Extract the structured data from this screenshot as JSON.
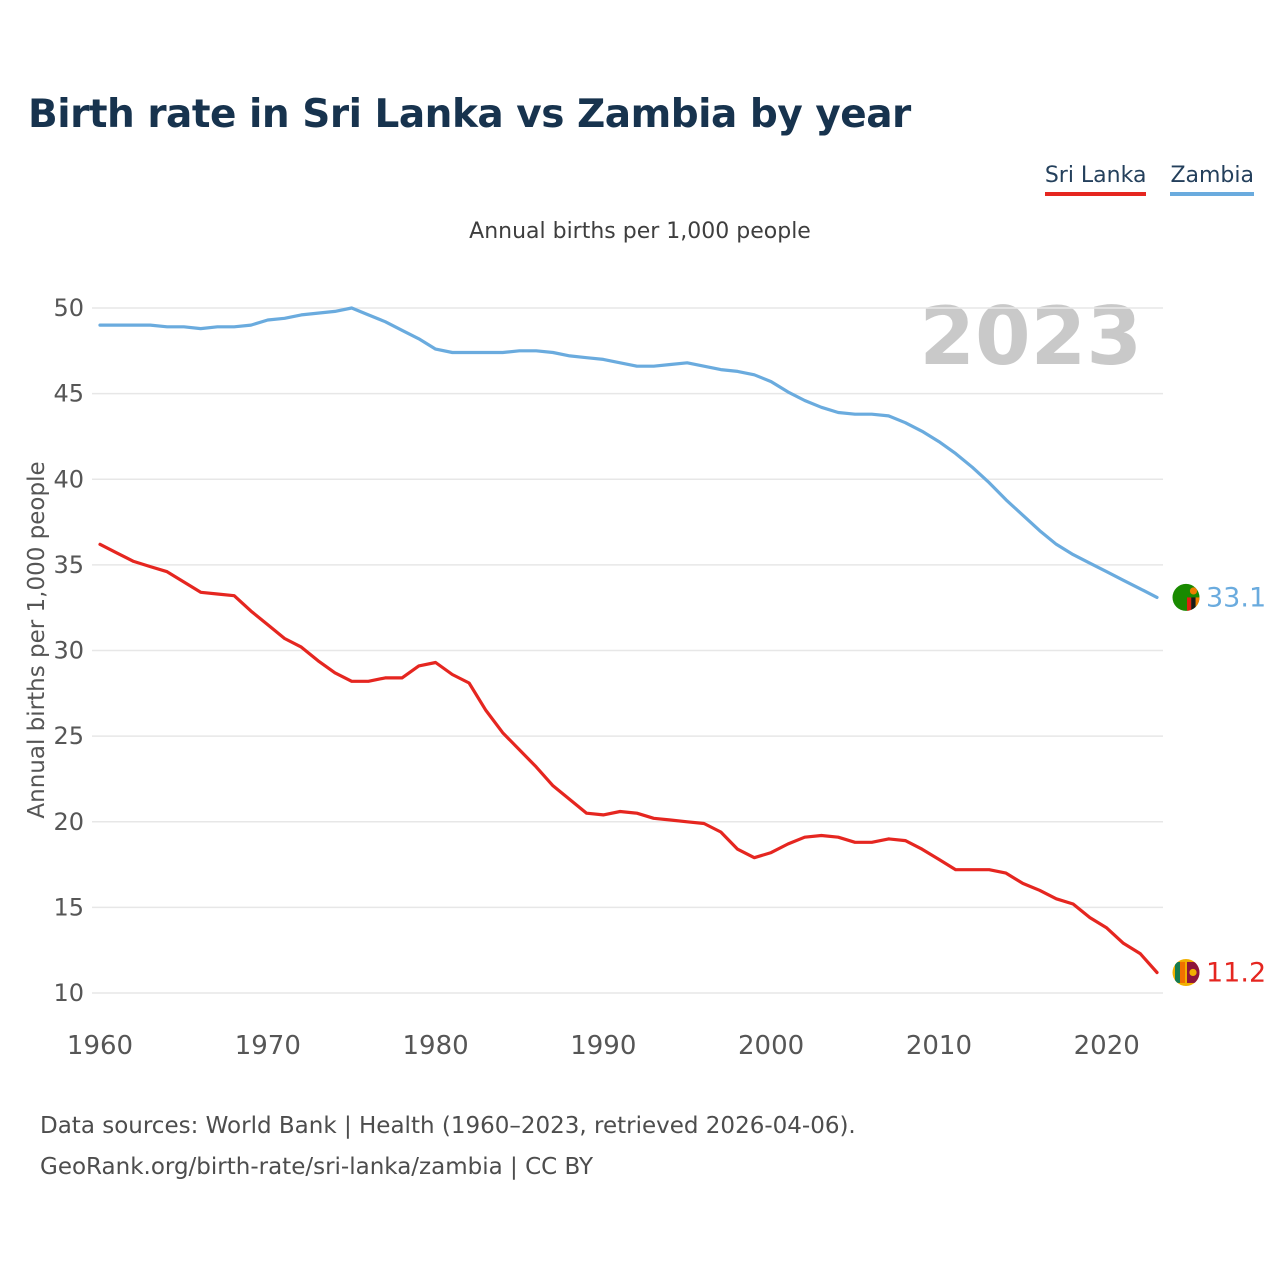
{
  "header": {
    "title": "Birth rate in Sri Lanka vs Zambia by year"
  },
  "legend": [
    {
      "label": "Sri Lanka",
      "color": "#e52620"
    },
    {
      "label": "Zambia",
      "color": "#6aabde"
    }
  ],
  "footer": {
    "line1": "Data sources: World Bank | Health (1960–2023, retrieved 2026-04-06).",
    "line2": "GeoRank.org/birth-rate/sri-lanka/zambia | CC BY"
  },
  "chart_data": {
    "type": "line",
    "title": "Birth rate in Sri Lanka vs Zambia by year",
    "subtitle": "Annual births per 1,000 people",
    "ylabel": "Annual births per 1,000 people",
    "watermark": "2023",
    "grid": "horizontal",
    "legend_position": "top-right",
    "ylim": [
      10,
      50
    ],
    "yticks": [
      10,
      15,
      20,
      25,
      30,
      35,
      40,
      45,
      50
    ],
    "xticks": [
      1960,
      1970,
      1980,
      1990,
      2000,
      2010,
      2020
    ],
    "x": [
      1960,
      1961,
      1962,
      1963,
      1964,
      1965,
      1966,
      1967,
      1968,
      1969,
      1970,
      1971,
      1972,
      1973,
      1974,
      1975,
      1976,
      1977,
      1978,
      1979,
      1980,
      1981,
      1982,
      1983,
      1984,
      1985,
      1986,
      1987,
      1988,
      1989,
      1990,
      1991,
      1992,
      1993,
      1994,
      1995,
      1996,
      1997,
      1998,
      1999,
      2000,
      2001,
      2002,
      2003,
      2004,
      2005,
      2006,
      2007,
      2008,
      2009,
      2010,
      2011,
      2012,
      2013,
      2014,
      2015,
      2016,
      2017,
      2018,
      2019,
      2020,
      2021,
      2022,
      2023
    ],
    "series": [
      {
        "id": "zambia",
        "name": "Zambia",
        "color": "#6aabde",
        "end_label": "33.1",
        "end_value": 33.1,
        "values": [
          49.0,
          49.0,
          49.0,
          49.0,
          48.9,
          48.9,
          48.8,
          48.9,
          48.9,
          49.0,
          49.3,
          49.4,
          49.6,
          49.7,
          49.8,
          50.0,
          49.6,
          49.2,
          48.7,
          48.2,
          47.6,
          47.4,
          47.4,
          47.4,
          47.4,
          47.5,
          47.5,
          47.4,
          47.2,
          47.1,
          47.0,
          46.8,
          46.6,
          46.6,
          46.7,
          46.8,
          46.6,
          46.4,
          46.3,
          46.1,
          45.7,
          45.1,
          44.6,
          44.2,
          43.9,
          43.8,
          43.8,
          43.7,
          43.3,
          42.8,
          42.2,
          41.5,
          40.7,
          39.8,
          38.8,
          37.9,
          37.0,
          36.2,
          35.6,
          35.1,
          34.6,
          34.1,
          33.6,
          33.1
        ]
      },
      {
        "id": "sri-lanka",
        "name": "Sri Lanka",
        "color": "#e52620",
        "end_label": "11.2",
        "end_value": 11.2,
        "values": [
          36.2,
          35.7,
          35.2,
          34.9,
          34.6,
          34.0,
          33.4,
          33.3,
          33.2,
          32.3,
          31.5,
          30.7,
          30.2,
          29.4,
          28.7,
          28.2,
          28.2,
          28.4,
          28.4,
          29.1,
          29.3,
          28.6,
          28.1,
          26.5,
          25.2,
          24.2,
          23.2,
          22.1,
          21.3,
          20.5,
          20.4,
          20.6,
          20.5,
          20.2,
          20.1,
          20.0,
          19.9,
          19.4,
          18.4,
          17.9,
          18.2,
          18.7,
          19.1,
          19.2,
          19.1,
          18.8,
          18.8,
          19.0,
          18.9,
          18.4,
          17.8,
          17.2,
          17.2,
          17.2,
          17.0,
          16.4,
          16.0,
          15.5,
          15.2,
          14.4,
          13.8,
          12.9,
          12.3,
          11.2
        ]
      }
    ]
  }
}
